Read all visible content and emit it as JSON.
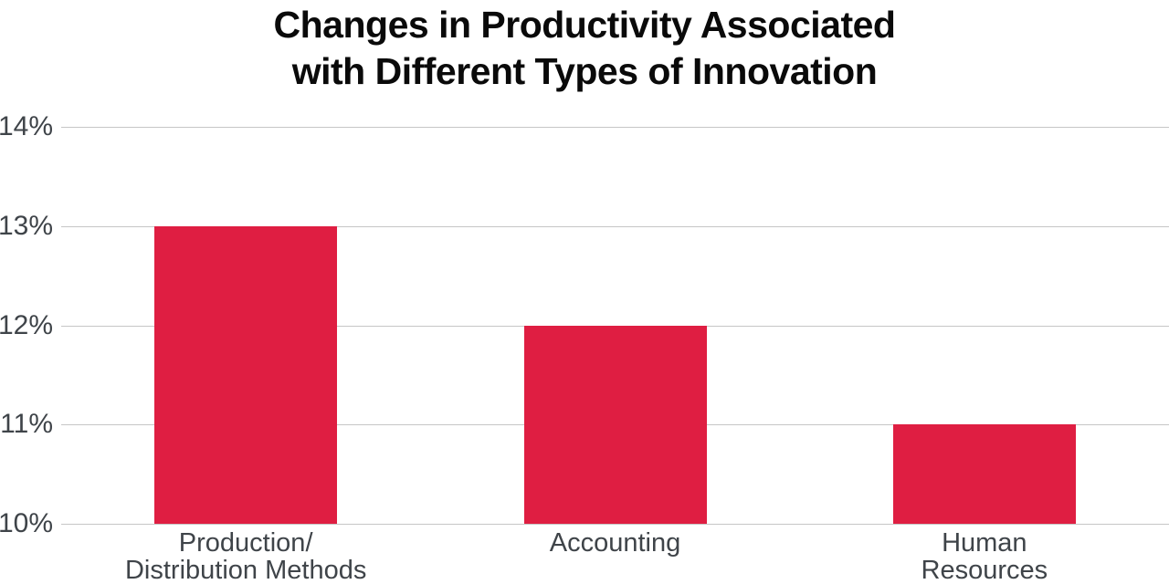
{
  "chart_data": {
    "type": "bar",
    "title": "Changes in Productivity Associated with Different Types of Innovation",
    "title_lines": [
      "Changes in Productivity Associated",
      "with Different Types of Innovation"
    ],
    "categories": [
      "Production/\nDistribution Methods",
      "Accounting",
      "Human Resources"
    ],
    "values": [
      13,
      12,
      11
    ],
    "unit": "%",
    "xlabel": "",
    "ylabel": "",
    "ylim": [
      10,
      14
    ],
    "yticks": [
      {
        "value": 14,
        "label": "14%"
      },
      {
        "value": 13,
        "label": "13%"
      },
      {
        "value": 12,
        "label": "12%"
      },
      {
        "value": 11,
        "label": "11%"
      },
      {
        "value": 10,
        "label": "10%"
      }
    ],
    "grid": "horizontal",
    "legend": "none",
    "colors": {
      "bar": "#df1e42",
      "gridline": "#c6c6c6",
      "axis_label": "#3f4449",
      "title": "#0a0a0a"
    }
  }
}
